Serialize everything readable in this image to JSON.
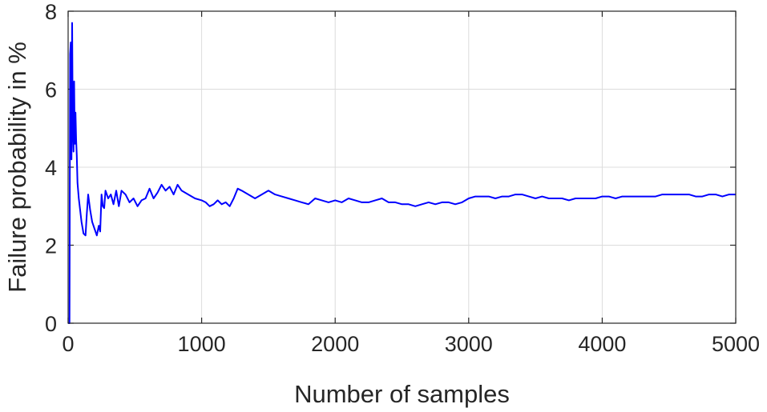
{
  "chart_data": {
    "type": "line",
    "title": "",
    "xlabel": "Number of samples",
    "ylabel": "Failure probability in %",
    "xlim": [
      0,
      5000
    ],
    "ylim": [
      0,
      8
    ],
    "x_ticks": [
      0,
      1000,
      2000,
      3000,
      4000,
      5000
    ],
    "y_ticks": [
      0,
      2,
      4,
      6,
      8
    ],
    "x_tick_labels": [
      "0",
      "1000",
      "2000",
      "3000",
      "4000",
      "5000"
    ],
    "y_tick_labels": [
      "0",
      "2",
      "4",
      "6",
      "8"
    ],
    "grid": true,
    "box": true,
    "legend": "none",
    "series": [
      {
        "color": "#0000ff",
        "x": [
          1,
          10,
          15,
          20,
          25,
          30,
          35,
          40,
          45,
          50,
          55,
          60,
          65,
          70,
          80,
          90,
          100,
          115,
          130,
          140,
          150,
          165,
          180,
          200,
          215,
          230,
          240,
          250,
          260,
          270,
          280,
          300,
          320,
          340,
          360,
          380,
          400,
          430,
          460,
          490,
          520,
          550,
          580,
          610,
          640,
          670,
          700,
          730,
          760,
          790,
          820,
          850,
          900,
          950,
          1000,
          1030,
          1060,
          1090,
          1120,
          1150,
          1180,
          1210,
          1240,
          1270,
          1300,
          1350,
          1400,
          1450,
          1500,
          1550,
          1600,
          1650,
          1700,
          1750,
          1800,
          1850,
          1900,
          1950,
          2000,
          2050,
          2100,
          2150,
          2200,
          2250,
          2300,
          2350,
          2400,
          2450,
          2500,
          2550,
          2600,
          2650,
          2700,
          2750,
          2800,
          2850,
          2900,
          2950,
          3000,
          3050,
          3100,
          3150,
          3200,
          3250,
          3300,
          3350,
          3400,
          3450,
          3500,
          3550,
          3600,
          3650,
          3700,
          3750,
          3800,
          3850,
          3900,
          3950,
          4000,
          4050,
          4100,
          4150,
          4200,
          4250,
          4300,
          4350,
          4400,
          4450,
          4500,
          4550,
          4600,
          4650,
          4700,
          4750,
          4800,
          4850,
          4900,
          4950,
          5000
        ],
        "y": [
          0,
          0,
          6.9,
          7.2,
          4.2,
          7.7,
          5.0,
          4.4,
          6.2,
          4.6,
          5.4,
          4.7,
          4.3,
          3.6,
          3.2,
          2.9,
          2.6,
          2.3,
          2.25,
          2.8,
          3.3,
          2.9,
          2.6,
          2.4,
          2.25,
          2.5,
          2.35,
          3.3,
          3.0,
          2.95,
          3.4,
          3.2,
          3.3,
          3.05,
          3.4,
          3.0,
          3.4,
          3.3,
          3.1,
          3.2,
          3.0,
          3.15,
          3.2,
          3.45,
          3.2,
          3.35,
          3.55,
          3.4,
          3.5,
          3.3,
          3.55,
          3.4,
          3.3,
          3.2,
          3.15,
          3.1,
          3.0,
          3.05,
          3.15,
          3.05,
          3.1,
          3.0,
          3.2,
          3.45,
          3.4,
          3.3,
          3.2,
          3.3,
          3.4,
          3.3,
          3.25,
          3.2,
          3.15,
          3.1,
          3.05,
          3.2,
          3.15,
          3.1,
          3.15,
          3.1,
          3.2,
          3.15,
          3.1,
          3.1,
          3.15,
          3.2,
          3.1,
          3.1,
          3.05,
          3.05,
          3.0,
          3.05,
          3.1,
          3.05,
          3.1,
          3.1,
          3.05,
          3.1,
          3.2,
          3.25,
          3.25,
          3.25,
          3.2,
          3.25,
          3.25,
          3.3,
          3.3,
          3.25,
          3.2,
          3.25,
          3.2,
          3.2,
          3.2,
          3.15,
          3.2,
          3.2,
          3.2,
          3.2,
          3.25,
          3.25,
          3.2,
          3.25,
          3.25,
          3.25,
          3.25,
          3.25,
          3.25,
          3.3,
          3.3,
          3.3,
          3.3,
          3.3,
          3.25,
          3.25,
          3.3,
          3.3,
          3.25,
          3.3,
          3.3
        ]
      }
    ]
  }
}
